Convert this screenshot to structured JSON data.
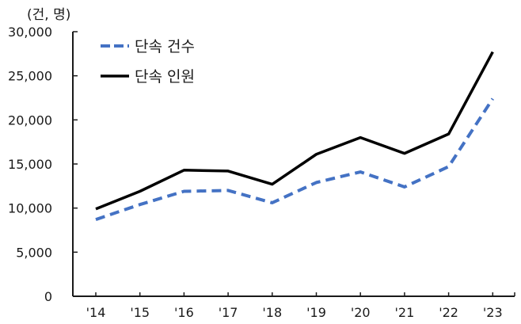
{
  "chart_data": {
    "type": "line",
    "title": "",
    "unit_label": "(건, 명)",
    "xlabel": "",
    "ylabel": "(건, 명)",
    "ylim": [
      0,
      30000
    ],
    "yticks": [
      "0",
      "5,000",
      "10,000",
      "15,000",
      "20,000",
      "25,000",
      "30,000"
    ],
    "categories": [
      "'14",
      "'15",
      "'16",
      "'17",
      "'18",
      "'19",
      "'20",
      "'21",
      "'22",
      "'23"
    ],
    "series": [
      {
        "name": "단속 건수",
        "style": "dashed",
        "color": "#4472C4",
        "values": [
          8700,
          10400,
          11900,
          12000,
          10600,
          12900,
          14100,
          12400,
          14700,
          22400
        ]
      },
      {
        "name": "단속 인원",
        "style": "solid",
        "color": "#000000",
        "values": [
          9900,
          11900,
          14300,
          14200,
          12700,
          16100,
          18000,
          16200,
          18400,
          27700
        ]
      }
    ],
    "grid": false,
    "legend_position": "top-left inside"
  }
}
